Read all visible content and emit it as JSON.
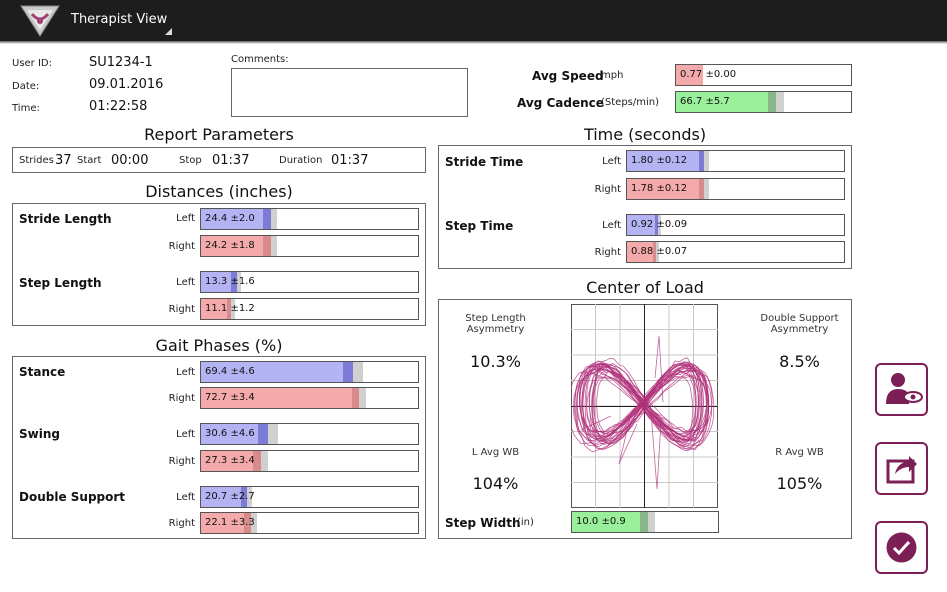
{
  "app": {
    "title": "Therapist View"
  },
  "user": {
    "id_label": "User ID:",
    "id_value": "SU1234-1",
    "date_label": "Date:",
    "date_value": "09.01.2016",
    "time_label": "Time:",
    "time_value": "01:22:58"
  },
  "comments": {
    "label": "Comments:",
    "value": ""
  },
  "avg": {
    "speed_label": "Avg Speed",
    "speed_unit": "mph",
    "speed_text": "0.77 ±0.00",
    "speed_fraction": 0.15,
    "cadence_label": "Avg Cadence",
    "cadence_unit": "(Steps/min)",
    "cadence_text": "66.7 ±5.7",
    "cadence_fraction": 0.53
  },
  "report": {
    "title": "Report Parameters",
    "strides_label": "Strides",
    "strides_value": "37",
    "start_label": "Start",
    "start_value": "00:00",
    "stop_label": "Stop",
    "stop_value": "01:37",
    "duration_label": "Duration",
    "duration_value": "01:37"
  },
  "distances": {
    "title": "Distances (inches)",
    "stride_length": {
      "label": "Stride Length",
      "left_label": "Left",
      "left_text": "24.4 ±2.0",
      "right_label": "Right",
      "right_text": "24.2 ±1.8"
    },
    "step_length": {
      "label": "Step Length",
      "left_label": "Left",
      "left_text": "13.3 ±1.6",
      "right_label": "Right",
      "right_text": "11.1 ±1.2"
    }
  },
  "gait": {
    "title": "Gait Phases (%)",
    "stance": {
      "label": "Stance",
      "left_label": "Left",
      "left_text": "69.4 ±4.6",
      "right_label": "Right",
      "right_text": "72.7 ±3.4"
    },
    "swing": {
      "label": "Swing",
      "left_label": "Left",
      "left_text": "30.6 ±4.6",
      "right_label": "Right",
      "right_text": "27.3 ±3.4"
    },
    "double_support": {
      "label": "Double Support",
      "left_label": "Left",
      "left_text": "20.7 ±2.7",
      "right_label": "Right",
      "right_text": "22.1 ±3.3"
    }
  },
  "time": {
    "title": "Time (seconds)",
    "stride_time": {
      "label": "Stride Time",
      "left_label": "Left",
      "left_text": "1.80 ±0.12",
      "right_label": "Right",
      "right_text": "1.78 ±0.12"
    },
    "step_time": {
      "label": "Step Time",
      "left_label": "Left",
      "left_text": "0.92 ±0.09",
      "right_label": "Right",
      "right_text": "0.88 ±0.07"
    }
  },
  "load": {
    "title": "Center of Load",
    "step_length_asym_label_1": "Step Length",
    "step_length_asym_label_2": "Asymmetry",
    "step_length_asym_value": "10.3%",
    "double_support_asym_label_1": "Double Support",
    "double_support_asym_label_2": "Asymmetry",
    "double_support_asym_value": "8.5%",
    "l_avg_wb_label": "L Avg WB",
    "l_avg_wb_value": "104%",
    "r_avg_wb_label": "R Avg WB",
    "r_avg_wb_value": "105%",
    "step_width_label": "Step Width",
    "step_width_unit": "(in)",
    "step_width_text": "10.0 ±0.9"
  },
  "buttons": {
    "view_user": "user-view-icon",
    "share": "share-icon",
    "confirm": "check-icon"
  },
  "colors": {
    "accent": "#7b1f56",
    "left_bar": "#b4b4f4",
    "right_bar": "#f4aaaa",
    "avg_bar": "#9af09a",
    "trace": "#b0307a"
  }
}
